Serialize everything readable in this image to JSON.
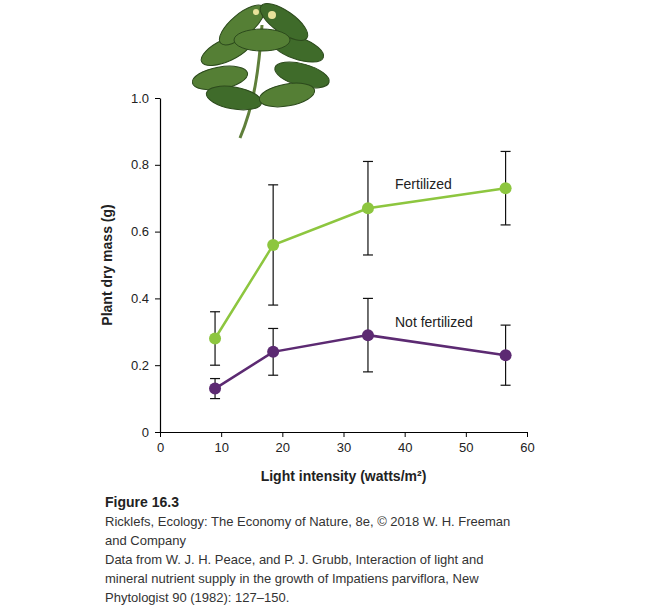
{
  "chart_data": {
    "type": "line",
    "title": "Figure 16.3",
    "caption": [
      "Ricklefs, Ecology: The Economy of Nature, 8e, © 2018 W. H. Freeman",
      "and Company",
      "Data from W. J. H. Peace, and P. J. Grubb, Interaction of light and",
      "mineral nutrient supply in the growth of Impatiens parviflora, New",
      "Phytologist 90 (1982): 127–150."
    ],
    "x_label": "Light intensity (watts/m²)",
    "y_label": "Plant dry mass (g)",
    "x": [
      9,
      18.5,
      34,
      56.5
    ],
    "series": [
      {
        "name": "Fertilized",
        "color": "#8dc63f",
        "marker": "circle",
        "line_style": "solid",
        "values": [
          0.28,
          0.56,
          0.67,
          0.73
        ],
        "errors": [
          0.08,
          0.18,
          0.14,
          0.11
        ]
      },
      {
        "name": "Not fertilized",
        "color": "#5c2a72",
        "marker": "circle",
        "line_style": "solid",
        "values": [
          0.13,
          0.24,
          0.29,
          0.23
        ],
        "errors": [
          0.03,
          0.07,
          0.11,
          0.09
        ]
      }
    ],
    "xlim": [
      0,
      60
    ],
    "xticks": [
      0,
      10,
      20,
      30,
      40,
      50,
      60
    ],
    "ylim": [
      0,
      1
    ],
    "yticks": [
      0,
      0.2,
      0.4,
      0.6,
      0.8,
      {
        "value": 1,
        "label": "1.0"
      }
    ],
    "grid": false
  }
}
